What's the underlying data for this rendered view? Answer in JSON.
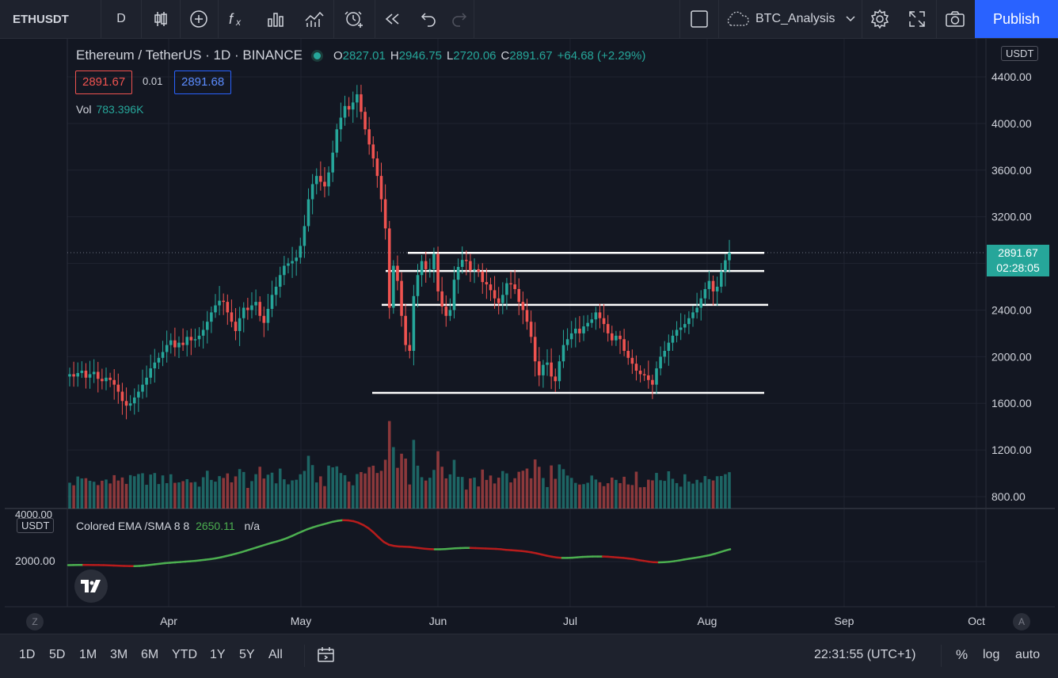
{
  "toolbar": {
    "symbol": "ETHUSDT",
    "interval": "D",
    "layout_name": "BTC_Analysis",
    "publish_label": "Publish",
    "icons": [
      "candles-icon",
      "add-indicator-plus-icon",
      "fx-icon",
      "bar-chart-icon",
      "indicators-icon",
      "alert-clock-icon",
      "replay-icon",
      "undo-icon",
      "redo-icon",
      "select-square-icon",
      "cloud-icon",
      "chevron-down-icon",
      "gear-icon",
      "fullscreen-icon",
      "camera-icon"
    ]
  },
  "legend": {
    "title": "Ethereum / TetherUS · 1D · BINANCE",
    "open_label": "O",
    "open": "2827.01",
    "high_label": "H",
    "high": "2946.75",
    "low_label": "L",
    "low": "2720.06",
    "close_label": "C",
    "close": "2891.67",
    "change": "+64.68 (+2.29%)",
    "bid": "2891.67",
    "spread": "0.01",
    "ask": "2891.68",
    "vol_label": "Vol",
    "vol_value": "783.396K"
  },
  "indicator": {
    "name": "Colored EMA /SMA 8 8",
    "value": "2650.11",
    "na": "n/a",
    "unit": "USDT",
    "axis_label": "2000.00",
    "axis_top_label": "4000.00"
  },
  "price_axis": {
    "unit": "USDT",
    "current_price": "2891.67",
    "countdown": "02:28:05"
  },
  "bottom": {
    "ranges": [
      "1D",
      "5D",
      "1M",
      "3M",
      "6M",
      "YTD",
      "1Y",
      "5Y",
      "All"
    ],
    "time": "22:31:55 (UTC+1)",
    "percent": "%",
    "log": "log",
    "auto": "auto",
    "z_label": "Z",
    "a_label": "A"
  },
  "colors": {
    "up": "#26a69a",
    "down": "#ef5350",
    "ema_up": "#4caf50",
    "ema_down": "#b71c1c",
    "accent": "#2962ff"
  },
  "chart_data": {
    "type": "candlestick",
    "x_tick_labels": [
      "Apr",
      "May",
      "Jun",
      "Jul",
      "Aug",
      "Sep",
      "Oct"
    ],
    "y_tick_labels": [
      "800.00",
      "1200.00",
      "1600.00",
      "2000.00",
      "2400.00",
      "2800.00",
      "3200.00",
      "3600.00",
      "4000.00",
      "4400.00"
    ],
    "ylim": [
      700,
      4500
    ],
    "grid": true,
    "horizontal_levels": [
      2890,
      2735,
      2445,
      1690
    ],
    "close_series": [
      1850,
      1830,
      1860,
      1880,
      1820,
      1850,
      1870,
      1810,
      1790,
      1820,
      1800,
      1760,
      1700,
      1620,
      1580,
      1600,
      1650,
      1700,
      1760,
      1820,
      1900,
      1950,
      1990,
      2040,
      2100,
      2140,
      2080,
      2120,
      2100,
      2170,
      2140,
      2150,
      2180,
      2230,
      2300,
      2380,
      2440,
      2480,
      2470,
      2380,
      2300,
      2220,
      2330,
      2420,
      2400,
      2440,
      2470,
      2350,
      2290,
      2410,
      2530,
      2600,
      2700,
      2780,
      2800,
      2820,
      2850,
      2950,
      3120,
      3350,
      3480,
      3550,
      3500,
      3460,
      3580,
      3750,
      3950,
      4050,
      4150,
      4120,
      4180,
      4250,
      4100,
      3950,
      3820,
      3700,
      3550,
      3350,
      3100,
      2420,
      2780,
      2650,
      2350,
      2100,
      2050,
      2520,
      2700,
      2820,
      2750,
      2750,
      2880,
      2560,
      2430,
      2350,
      2400,
      2660,
      2770,
      2830,
      2820,
      2740,
      2750,
      2730,
      2640,
      2620,
      2570,
      2500,
      2460,
      2530,
      2630,
      2620,
      2580,
      2470,
      2400,
      2300,
      2170,
      1960,
      1840,
      1930,
      1950,
      1830,
      1790,
      1960,
      2100,
      2150,
      2200,
      2240,
      2200,
      2260,
      2290,
      2320,
      2380,
      2330,
      2280,
      2200,
      2140,
      2180,
      2150,
      2050,
      1990,
      1940,
      1880,
      1850,
      1840,
      1800,
      1760,
      1900,
      2000,
      2050,
      2120,
      2180,
      2230,
      2250,
      2280,
      2330,
      2380,
      2420,
      2500,
      2580,
      2650,
      2560,
      2600,
      2730,
      2827,
      2891.67
    ],
    "volume_label": "Vol 783.396K",
    "ema_series": [
      1840,
      1845,
      1850,
      1853,
      1850,
      1848,
      1845,
      1840,
      1830,
      1820,
      1810,
      1800,
      1795,
      1790,
      1800,
      1820,
      1850,
      1880,
      1910,
      1940,
      1960,
      1980,
      2000,
      2020,
      2040,
      2060,
      2090,
      2120,
      2150,
      2190,
      2240,
      2300,
      2360,
      2430,
      2500,
      2580,
      2660,
      2740,
      2820,
      2900,
      2980,
      3050,
      3130,
      3220,
      3330,
      3450,
      3560,
      3670,
      3760,
      3840,
      3910,
      3980,
      4050,
      4100,
      4130,
      4120,
      4080,
      4000,
      3880,
      3720,
      3500,
      3250,
      3020,
      2880,
      2820,
      2790,
      2780,
      2770,
      2740,
      2710,
      2680,
      2660,
      2650,
      2650,
      2660,
      2680,
      2700,
      2710,
      2720,
      2720,
      2710,
      2700,
      2690,
      2680,
      2670,
      2650,
      2620,
      2600,
      2580,
      2560,
      2530,
      2490,
      2440,
      2380,
      2320,
      2270,
      2230,
      2210,
      2210,
      2220,
      2240,
      2260,
      2270,
      2280,
      2280,
      2280,
      2270,
      2250,
      2230,
      2210,
      2180,
      2150,
      2100,
      2060,
      2020,
      1990,
      1980,
      1990,
      2010,
      2040,
      2080,
      2130,
      2170,
      2210,
      2250,
      2300,
      2350,
      2420,
      2500,
      2580,
      2650.11
    ]
  }
}
